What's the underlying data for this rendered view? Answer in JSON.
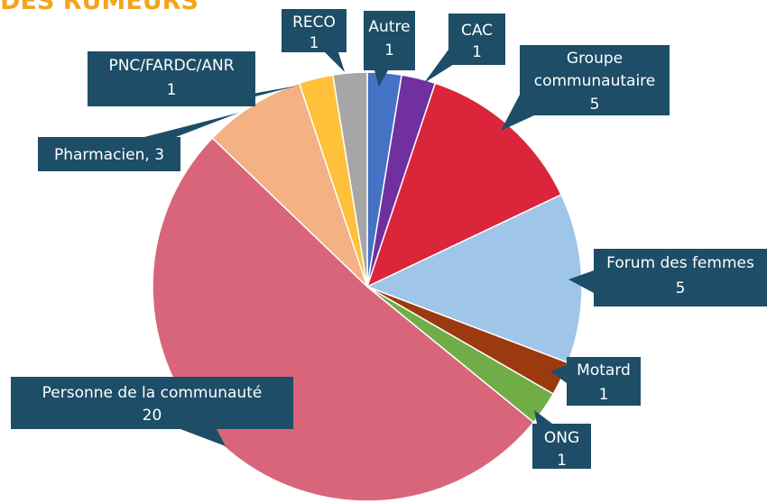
{
  "chart_data": {
    "type": "pie",
    "title": "DES RUMEURS",
    "categories": [
      "Autre",
      "CAC",
      "Groupe communautaire",
      "Forum des femmes",
      "Motard",
      "ONG",
      "Personne de la communauté",
      "Pharmacien",
      "PNC/FARDC/ANR",
      "RECO"
    ],
    "values": [
      1,
      1,
      5,
      5,
      1,
      1,
      20,
      3,
      1,
      1
    ],
    "value_labels": [
      "1",
      "1",
      "5",
      "5",
      "1",
      "1",
      "20",
      "Pharmacien, 3",
      "1",
      "1"
    ],
    "colors": [
      "#4472c4",
      "#7030a0",
      "#da253b",
      "#9fc5e8",
      "#9c3a0f",
      "#70ad47",
      "#d9657a",
      "#f4b183",
      "#ffc03a",
      "#a6a6a6"
    ]
  }
}
